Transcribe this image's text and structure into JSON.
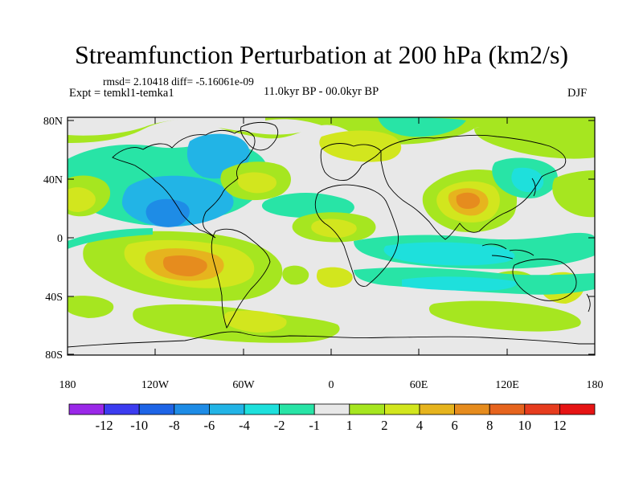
{
  "title": "Streamfunction Perturbation at 200 hPa (km2/s)",
  "subtitle": {
    "stats": "rmsd= 2.10418  diff= -5.16061e-09",
    "experiment": "Expt = temkl1-temka1",
    "period": "11.0kyr BP - 00.0kyr BP",
    "season": "DJF"
  },
  "axes": {
    "lat_labels": [
      "80N",
      "40N",
      "0",
      "40S",
      "80S"
    ],
    "lon_labels": [
      "180",
      "120W",
      "60W",
      "0",
      "60E",
      "120E",
      "180"
    ]
  },
  "colorbar": {
    "labels": [
      "-12",
      "-10",
      "-8",
      "-6",
      "-4",
      "-2",
      "-1",
      "1",
      "2",
      "4",
      "6",
      "8",
      "10",
      "12"
    ],
    "colors": [
      "#9a28e8",
      "#3c3cf0",
      "#1e64e6",
      "#1e8ce6",
      "#22b4e6",
      "#1ee0dc",
      "#28e4a6",
      "#e8e8e8",
      "#a6e620",
      "#d2e61e",
      "#e6b41e",
      "#e68c1e",
      "#e6641e",
      "#e63c1e",
      "#e61414"
    ]
  },
  "map": {
    "projection": "cylindrical-equidistant",
    "lon_range": [
      -180,
      180
    ],
    "lat_range": [
      -85,
      85
    ]
  }
}
